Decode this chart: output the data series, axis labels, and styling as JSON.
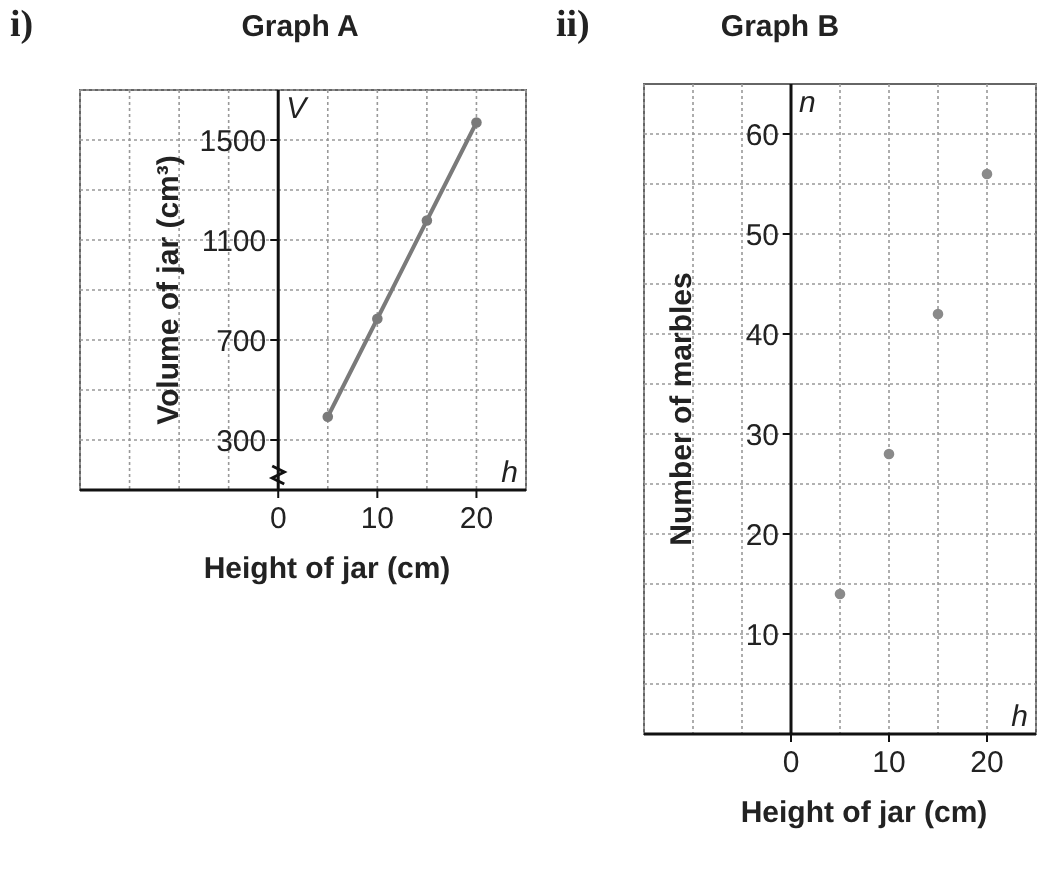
{
  "chart_data": [
    {
      "type": "line",
      "title": "Graph A",
      "xlabel": "Height of jar (cm)",
      "ylabel": "Volume of jar (cm³)",
      "annotations": [
        "i)",
        "V",
        "h"
      ],
      "x": [
        5,
        10,
        15,
        20
      ],
      "series": [
        {
          "color": "#7a7a7a",
          "values": [
            393,
            785,
            1178,
            1570
          ]
        }
      ],
      "xlim": [
        -20,
        25
      ],
      "ylim": [
        100,
        1700
      ],
      "xticks": [
        {
          "value": -20,
          "label": null
        },
        {
          "value": -15,
          "label": null
        },
        {
          "value": -10,
          "label": null
        },
        {
          "value": -5,
          "label": null
        },
        0,
        {
          "value": 5,
          "label": null
        },
        10,
        {
          "value": 15,
          "label": null
        },
        20,
        {
          "value": 25,
          "label": null
        }
      ],
      "yticks": [
        {
          "value": 100,
          "label": null
        },
        300,
        {
          "value": 500,
          "label": null
        },
        700,
        {
          "value": 900,
          "label": null
        },
        1100,
        {
          "value": 1300,
          "label": null
        },
        1500,
        {
          "value": 1700,
          "label": null
        }
      ],
      "grid": true,
      "marker": "circle",
      "line_style": "solid"
    },
    {
      "type": "scatter",
      "title": "Graph B",
      "xlabel": "Height of jar (cm)",
      "ylabel": "Number of marbles",
      "annotations": [
        "ii)",
        "n",
        "h"
      ],
      "x": [
        5,
        10,
        15,
        20
      ],
      "series": [
        {
          "color": "#8a8a8a",
          "values": [
            14,
            28,
            42,
            56
          ]
        }
      ],
      "xlim": [
        -15,
        25
      ],
      "ylim": [
        0,
        65
      ],
      "xticks": [
        {
          "value": -15,
          "label": null
        },
        {
          "value": -10,
          "label": null
        },
        {
          "value": -5,
          "label": null
        },
        0,
        {
          "value": 5,
          "label": null
        },
        10,
        {
          "value": 15,
          "label": null
        },
        20,
        {
          "value": 25,
          "label": null
        }
      ],
      "yticks": [
        {
          "value": 5,
          "label": null
        },
        10,
        {
          "value": 15,
          "label": null
        },
        20,
        {
          "value": 25,
          "label": null
        },
        30,
        {
          "value": 35,
          "label": null
        },
        40,
        {
          "value": 45,
          "label": null
        },
        50,
        {
          "value": 55,
          "label": null
        },
        60
      ],
      "grid": true,
      "marker": "circle"
    }
  ]
}
